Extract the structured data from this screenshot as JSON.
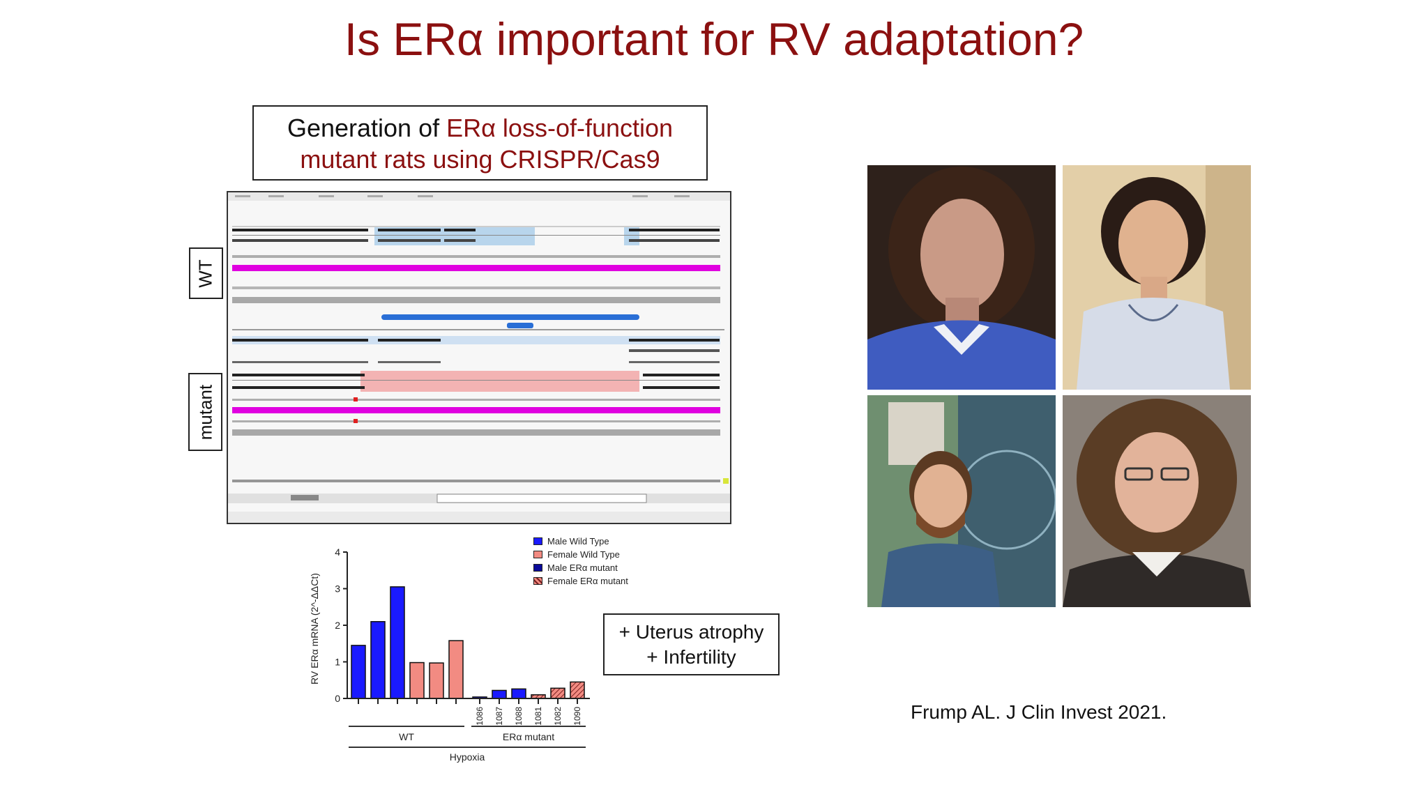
{
  "slide": {
    "title": "Is ERα important for RV adaptation?",
    "generation_box": {
      "line1_black": "Generation of ",
      "line1_red": "ERα loss-of-function",
      "line2_red": "mutant rats using CRISPR/Cas9"
    },
    "browser_labels": {
      "wt": "WT",
      "mutant": "mutant"
    },
    "phenotype_box": {
      "line1": "+ Uterus atrophy",
      "line2": "+ Infertility"
    },
    "citation": "Frump AL. J Clin Invest 2021."
  },
  "colors": {
    "title_red": "#8b1010",
    "male_wt": "#1a1aff",
    "female_wt": "#f28b82",
    "male_mutant": "#1a1aff",
    "female_mutant": "#f28b82",
    "cds_magenta": "#e000e0"
  },
  "chart_data": {
    "type": "bar",
    "ylabel": "RV ERα mRNA (2^-ΔΔCt)",
    "ylim": [
      0,
      4
    ],
    "yticks": [
      "0",
      "1",
      "2",
      "3",
      "4"
    ],
    "legend": [
      {
        "name": "Male Wild Type",
        "pattern": "solid-blue"
      },
      {
        "name": "Female Wild Type",
        "pattern": "solid-pink"
      },
      {
        "name": "Male ERα mutant",
        "pattern": "solid-darkblue"
      },
      {
        "name": "Female ERα mutant",
        "pattern": "hatched-pink"
      }
    ],
    "series": [
      {
        "name": "Male Wild Type",
        "values": [
          1.45,
          2.1,
          3.05
        ]
      },
      {
        "name": "Female Wild Type",
        "values": [
          0.98,
          0.97,
          1.58
        ]
      },
      {
        "name": "Male ERα mutant",
        "values": [
          0.04,
          0.22,
          0.26
        ]
      },
      {
        "name": "Female ERα mutant",
        "values": [
          0.1,
          0.28,
          0.45
        ]
      }
    ],
    "mutant_bar_labels": [
      "1086",
      "1087",
      "1088",
      "1081",
      "1082",
      "1090"
    ],
    "groups": [
      "WT",
      "ERα mutant"
    ],
    "group_title": "Hypoxia"
  },
  "photos": [
    {
      "name": "portrait-1",
      "bg": "#3a2a22",
      "shirt": "#3f5cc0"
    },
    {
      "name": "portrait-2",
      "bg": "#d9c19a",
      "shirt": "#d8dce6"
    },
    {
      "name": "portrait-3",
      "bg": "#6f8f70",
      "shirt": "#3d5f86"
    },
    {
      "name": "portrait-4",
      "bg": "#8a8179",
      "shirt": "#2f2a28"
    }
  ]
}
